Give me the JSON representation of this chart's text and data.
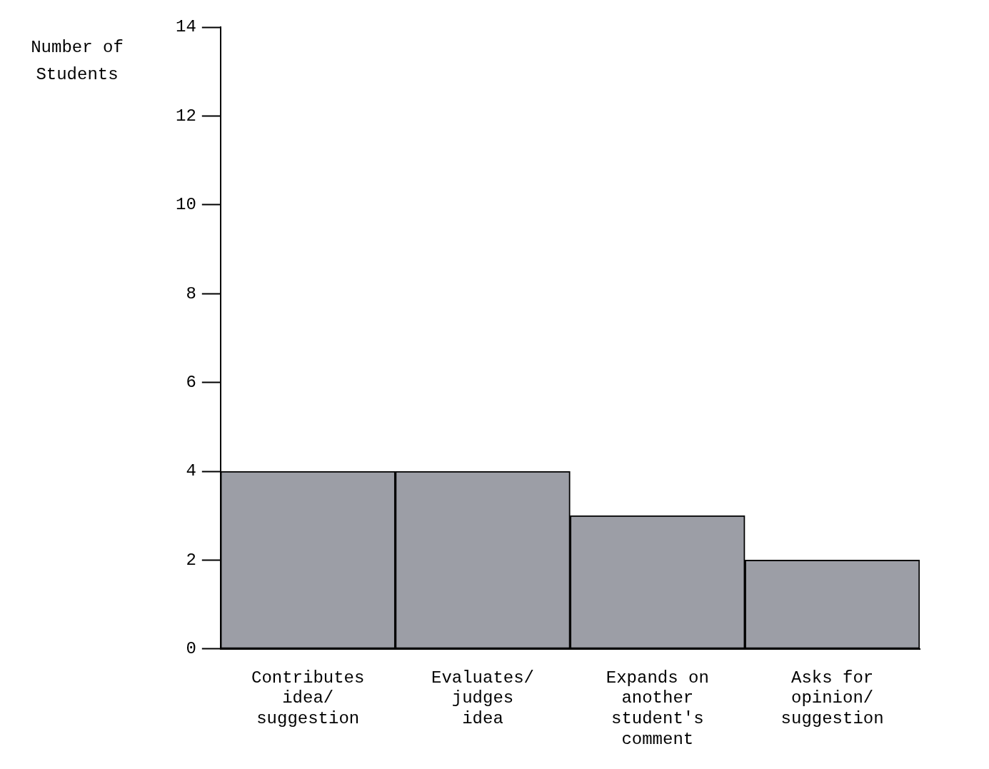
{
  "chart_data": {
    "type": "bar",
    "ylabel": "Number of Students",
    "categories": [
      "Contributes idea/ suggestion",
      "Evaluates/ judges idea",
      "Expands on another student's comment",
      "Asks for opinion/ suggestion"
    ],
    "values": [
      4,
      4,
      3,
      2
    ],
    "color": "#9c9ea6",
    "ylim": [
      0,
      14
    ],
    "yticks": [
      0,
      2,
      4,
      6,
      8,
      10,
      12,
      14
    ],
    "grid": false,
    "legend": false
  }
}
